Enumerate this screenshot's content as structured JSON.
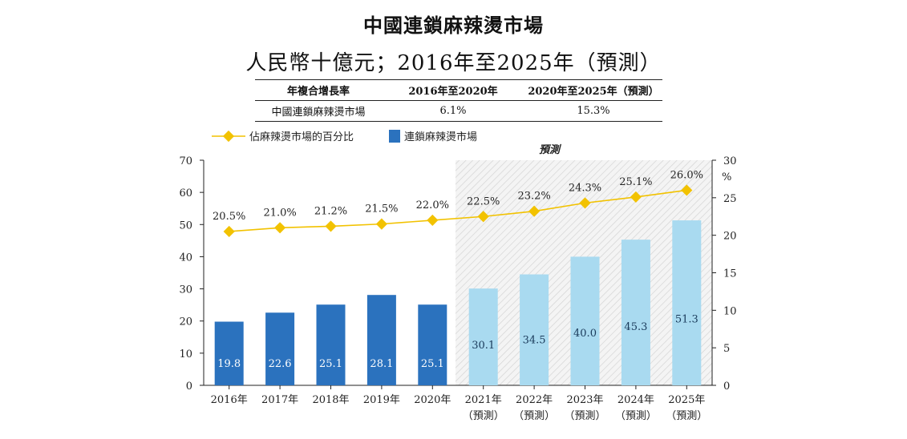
{
  "title": "中國連鎖麻辣燙市場",
  "subtitle": "人民幣十億元；2016年至2025年（預測）",
  "cagr_table": {
    "headers": [
      "年複合增長率",
      "2016年至2020年",
      "2020年至2025年（預測）"
    ],
    "rows": [
      [
        "中國連鎖麻辣燙市場",
        "6.1%",
        "15.3%"
      ]
    ]
  },
  "legend": {
    "line_label": "佔麻辣燙市場的百分比",
    "bar_label": "連鎖麻辣燙市場"
  },
  "forecast_label": "預測",
  "colors": {
    "bar_actual": "#2b72be",
    "bar_forecast": "#a9daf0",
    "line": "#f2c200",
    "marker": "#f2c200"
  },
  "chart_data": {
    "type": "bar",
    "categories": [
      "2016年",
      "2017年",
      "2018年",
      "2019年",
      "2020年",
      "2021年",
      "2022年",
      "2023年",
      "2024年",
      "2025年"
    ],
    "category_notes": [
      "",
      "",
      "",
      "",
      "",
      "（預測）",
      "（預測）",
      "（預測）",
      "（預測）",
      "（預測）"
    ],
    "series": [
      {
        "name": "連鎖麻辣燙市場",
        "type": "bar",
        "axis": "left",
        "values": [
          19.8,
          22.6,
          25.1,
          28.1,
          25.1,
          30.1,
          34.5,
          40.0,
          45.3,
          51.3
        ],
        "value_labels": [
          "19.8",
          "22.6",
          "25.1",
          "28.1",
          "25.1",
          "30.1",
          "34.5",
          "40.0",
          "45.3",
          "51.3"
        ]
      },
      {
        "name": "佔麻辣燙市場的百分比",
        "type": "line",
        "axis": "right",
        "values": [
          20.5,
          21.0,
          21.2,
          21.5,
          22.0,
          22.5,
          23.2,
          24.3,
          25.1,
          26.0
        ],
        "value_labels": [
          "20.5%",
          "21.0%",
          "21.2%",
          "21.5%",
          "22.0%",
          "22.5%",
          "23.2%",
          "24.3%",
          "25.1%",
          "26.0%"
        ]
      }
    ],
    "forecast_start_index": 5,
    "ylim_left": [
      0,
      70
    ],
    "yticks_left": [
      "0",
      "10",
      "20",
      "30",
      "40",
      "50",
      "60",
      "70"
    ],
    "ylim_right": [
      0,
      30
    ],
    "yticks_right": [
      "0",
      "5",
      "10",
      "15",
      "20",
      "25",
      "30"
    ],
    "ylabel_right": "%",
    "legend_position": "top-left",
    "grid": false
  }
}
